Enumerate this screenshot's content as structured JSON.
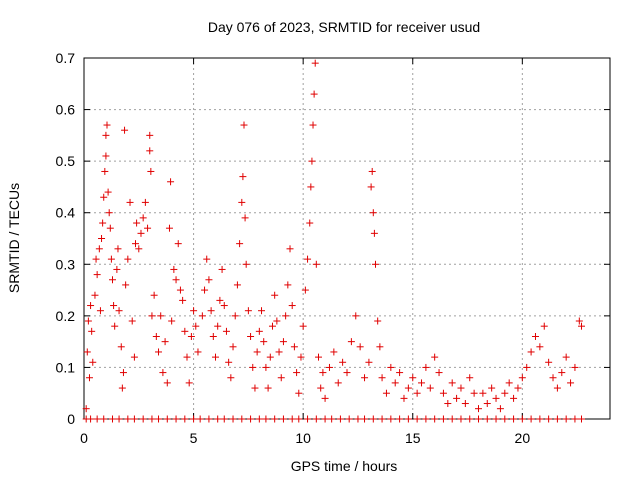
{
  "chart_data": {
    "type": "scatter",
    "title": "Day 076 of 2023, SRMTID for receiver usud",
    "xlabel": "GPS time / hours",
    "ylabel": "SRMTID / TECUs",
    "xlim": [
      0,
      24
    ],
    "ylim": [
      0,
      0.7
    ],
    "xticks": [
      0,
      5,
      10,
      15,
      20
    ],
    "xtick_labels": [
      "0",
      "5",
      "10",
      "15",
      "20"
    ],
    "yticks": [
      0,
      0.1,
      0.2,
      0.3,
      0.4,
      0.5,
      0.6,
      0.7
    ],
    "ytick_labels": [
      "0",
      "0.1",
      "0.2",
      "0.3",
      "0.4",
      "0.5",
      "0.6",
      "0.7"
    ],
    "grid": true,
    "marker": "+",
    "series": [
      {
        "name": "SRMTID",
        "color": "#e00000",
        "points": [
          [
            0.1,
            0.02
          ],
          [
            0.15,
            0.13
          ],
          [
            0.2,
            0.19
          ],
          [
            0.25,
            0.08
          ],
          [
            0.3,
            0.22
          ],
          [
            0.35,
            0.17
          ],
          [
            0.4,
            0.11
          ],
          [
            0.5,
            0.24
          ],
          [
            0.55,
            0.31
          ],
          [
            0.6,
            0.28
          ],
          [
            0.7,
            0.33
          ],
          [
            0.75,
            0.21
          ],
          [
            0.8,
            0.35
          ],
          [
            0.85,
            0.38
          ],
          [
            0.9,
            0.43
          ],
          [
            0.95,
            0.48
          ],
          [
            1.0,
            0.51
          ],
          [
            1.0,
            0.55
          ],
          [
            1.05,
            0.57
          ],
          [
            1.1,
            0.44
          ],
          [
            1.15,
            0.4
          ],
          [
            1.2,
            0.37
          ],
          [
            1.25,
            0.31
          ],
          [
            1.3,
            0.27
          ],
          [
            1.35,
            0.22
          ],
          [
            1.4,
            0.18
          ],
          [
            1.5,
            0.29
          ],
          [
            1.55,
            0.33
          ],
          [
            1.6,
            0.21
          ],
          [
            1.7,
            0.14
          ],
          [
            1.75,
            0.06
          ],
          [
            1.8,
            0.09
          ],
          [
            1.85,
            0.56
          ],
          [
            1.9,
            0.26
          ],
          [
            2.0,
            0.31
          ],
          [
            2.1,
            0.42
          ],
          [
            2.2,
            0.19
          ],
          [
            2.3,
            0.12
          ],
          [
            2.35,
            0.34
          ],
          [
            2.4,
            0.38
          ],
          [
            2.5,
            0.33
          ],
          [
            2.6,
            0.36
          ],
          [
            2.7,
            0.39
          ],
          [
            2.8,
            0.42
          ],
          [
            2.9,
            0.37
          ],
          [
            3.0,
            0.55
          ],
          [
            3.0,
            0.52
          ],
          [
            3.05,
            0.48
          ],
          [
            3.1,
            0.2
          ],
          [
            3.2,
            0.24
          ],
          [
            3.3,
            0.16
          ],
          [
            3.4,
            0.13
          ],
          [
            3.5,
            0.2
          ],
          [
            3.6,
            0.09
          ],
          [
            3.7,
            0.15
          ],
          [
            3.8,
            0.07
          ],
          [
            3.9,
            0.37
          ],
          [
            3.95,
            0.46
          ],
          [
            4.0,
            0.19
          ],
          [
            4.1,
            0.29
          ],
          [
            4.2,
            0.27
          ],
          [
            4.3,
            0.34
          ],
          [
            4.4,
            0.25
          ],
          [
            4.5,
            0.23
          ],
          [
            4.6,
            0.17
          ],
          [
            4.7,
            0.12
          ],
          [
            4.8,
            0.07
          ],
          [
            4.9,
            0.16
          ],
          [
            5.0,
            0.21
          ],
          [
            5.1,
            0.18
          ],
          [
            5.2,
            0.13
          ],
          [
            5.4,
            0.2
          ],
          [
            5.5,
            0.25
          ],
          [
            5.6,
            0.31
          ],
          [
            5.7,
            0.27
          ],
          [
            5.8,
            0.21
          ],
          [
            5.9,
            0.16
          ],
          [
            6.0,
            0.12
          ],
          [
            6.1,
            0.18
          ],
          [
            6.2,
            0.23
          ],
          [
            6.3,
            0.29
          ],
          [
            6.4,
            0.22
          ],
          [
            6.5,
            0.17
          ],
          [
            6.6,
            0.11
          ],
          [
            6.7,
            0.08
          ],
          [
            6.8,
            0.14
          ],
          [
            6.9,
            0.2
          ],
          [
            7.0,
            0.26
          ],
          [
            7.1,
            0.34
          ],
          [
            7.2,
            0.42
          ],
          [
            7.25,
            0.47
          ],
          [
            7.3,
            0.57
          ],
          [
            7.35,
            0.39
          ],
          [
            7.4,
            0.3
          ],
          [
            7.5,
            0.21
          ],
          [
            7.6,
            0.16
          ],
          [
            7.7,
            0.1
          ],
          [
            7.8,
            0.06
          ],
          [
            7.9,
            0.13
          ],
          [
            8.0,
            0.17
          ],
          [
            8.1,
            0.21
          ],
          [
            8.2,
            0.15
          ],
          [
            8.3,
            0.1
          ],
          [
            8.4,
            0.06
          ],
          [
            8.5,
            0.12
          ],
          [
            8.6,
            0.18
          ],
          [
            8.7,
            0.24
          ],
          [
            8.8,
            0.19
          ],
          [
            8.9,
            0.13
          ],
          [
            9.0,
            0.08
          ],
          [
            9.1,
            0.15
          ],
          [
            9.2,
            0.2
          ],
          [
            9.3,
            0.26
          ],
          [
            9.4,
            0.33
          ],
          [
            9.5,
            0.22
          ],
          [
            9.6,
            0.14
          ],
          [
            9.7,
            0.09
          ],
          [
            9.8,
            0.05
          ],
          [
            9.9,
            0.12
          ],
          [
            10.0,
            0.18
          ],
          [
            10.1,
            0.25
          ],
          [
            10.2,
            0.31
          ],
          [
            10.3,
            0.38
          ],
          [
            10.35,
            0.45
          ],
          [
            10.4,
            0.5
          ],
          [
            10.45,
            0.57
          ],
          [
            10.5,
            0.63
          ],
          [
            10.55,
            0.69
          ],
          [
            10.6,
            0.3
          ],
          [
            10.7,
            0.12
          ],
          [
            10.8,
            0.06
          ],
          [
            10.9,
            0.09
          ],
          [
            11.0,
            0.04
          ],
          [
            11.2,
            0.1
          ],
          [
            11.4,
            0.13
          ],
          [
            11.6,
            0.07
          ],
          [
            11.8,
            0.11
          ],
          [
            12.0,
            0.09
          ],
          [
            12.2,
            0.15
          ],
          [
            12.4,
            0.2
          ],
          [
            12.6,
            0.14
          ],
          [
            12.8,
            0.08
          ],
          [
            13.0,
            0.11
          ],
          [
            13.1,
            0.45
          ],
          [
            13.15,
            0.48
          ],
          [
            13.2,
            0.4
          ],
          [
            13.25,
            0.36
          ],
          [
            13.3,
            0.3
          ],
          [
            13.4,
            0.19
          ],
          [
            13.5,
            0.14
          ],
          [
            13.6,
            0.08
          ],
          [
            13.8,
            0.05
          ],
          [
            14.0,
            0.1
          ],
          [
            14.2,
            0.07
          ],
          [
            14.4,
            0.09
          ],
          [
            14.6,
            0.04
          ],
          [
            14.8,
            0.06
          ],
          [
            15.0,
            0.08
          ],
          [
            15.2,
            0.05
          ],
          [
            15.4,
            0.07
          ],
          [
            15.6,
            0.1
          ],
          [
            15.8,
            0.06
          ],
          [
            16.0,
            0.12
          ],
          [
            16.2,
            0.09
          ],
          [
            16.4,
            0.05
          ],
          [
            16.6,
            0.03
          ],
          [
            16.8,
            0.07
          ],
          [
            17.0,
            0.04
          ],
          [
            17.2,
            0.06
          ],
          [
            17.4,
            0.03
          ],
          [
            17.6,
            0.08
          ],
          [
            17.8,
            0.05
          ],
          [
            18.0,
            0.02
          ],
          [
            18.2,
            0.05
          ],
          [
            18.4,
            0.03
          ],
          [
            18.6,
            0.06
          ],
          [
            18.8,
            0.04
          ],
          [
            19.0,
            0.02
          ],
          [
            19.2,
            0.05
          ],
          [
            19.4,
            0.07
          ],
          [
            19.6,
            0.04
          ],
          [
            19.8,
            0.06
          ],
          [
            20.0,
            0.08
          ],
          [
            20.2,
            0.1
          ],
          [
            20.4,
            0.13
          ],
          [
            20.6,
            0.16
          ],
          [
            20.8,
            0.14
          ],
          [
            21.0,
            0.18
          ],
          [
            21.2,
            0.11
          ],
          [
            21.4,
            0.08
          ],
          [
            21.6,
            0.06
          ],
          [
            21.8,
            0.09
          ],
          [
            22.0,
            0.12
          ],
          [
            22.2,
            0.07
          ],
          [
            22.4,
            0.1
          ],
          [
            22.6,
            0.19
          ],
          [
            22.7,
            0.18
          ]
        ],
        "zero_points": [
          0.1,
          0.3,
          0.6,
          0.9,
          1.3,
          1.6,
          2.0,
          2.3,
          2.7,
          3.1,
          3.4,
          3.8,
          4.2,
          4.6,
          5.0,
          5.3,
          5.7,
          6.1,
          6.4,
          6.8,
          7.2,
          7.6,
          8.0,
          8.3,
          8.7,
          9.1,
          9.5,
          9.8,
          10.2,
          10.6,
          11.0,
          11.3,
          11.7,
          12.1,
          12.5,
          12.8,
          13.2,
          13.6,
          14.0,
          14.4,
          14.8,
          15.2,
          15.6,
          16.0,
          16.4,
          16.8,
          17.2,
          17.6,
          18.0,
          18.4,
          18.8,
          19.2,
          19.6,
          20.0,
          20.4,
          20.8,
          21.2,
          21.6,
          22.0,
          22.4,
          22.7
        ]
      }
    ]
  }
}
